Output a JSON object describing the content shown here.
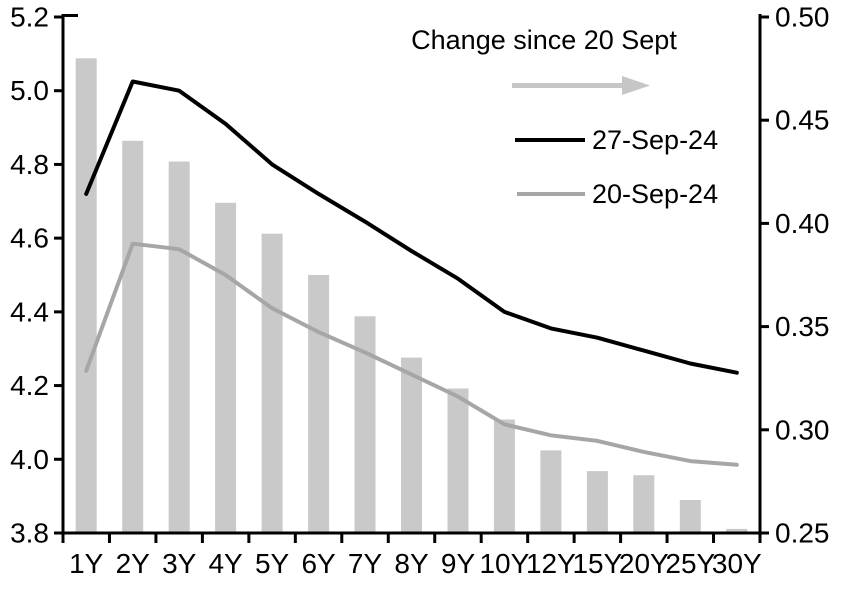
{
  "chart_data": {
    "type": "combo",
    "title": "",
    "categories": [
      "1Y",
      "2Y",
      "3Y",
      "4Y",
      "5Y",
      "6Y",
      "7Y",
      "8Y",
      "9Y",
      "10Y",
      "12Y",
      "15Y",
      "20Y",
      "25Y",
      "30Y"
    ],
    "series": [
      {
        "name": "Change since 20 Sept",
        "type": "bar",
        "axis": "right",
        "color": "#c9c9c9",
        "values": [
          0.48,
          0.44,
          0.43,
          0.41,
          0.395,
          0.375,
          0.355,
          0.335,
          0.32,
          0.305,
          0.29,
          0.28,
          0.278,
          0.266,
          0.252
        ]
      },
      {
        "name": "27-Sep-24",
        "type": "line",
        "axis": "left",
        "color": "#000000",
        "values": [
          4.72,
          5.025,
          5.0,
          4.91,
          4.8,
          4.72,
          4.645,
          4.565,
          4.49,
          4.4,
          4.355,
          4.33,
          4.295,
          4.26,
          4.235
        ]
      },
      {
        "name": "20-Sep-24",
        "type": "line",
        "axis": "left",
        "color": "#a6a6a6",
        "values": [
          4.24,
          4.585,
          4.57,
          4.5,
          4.41,
          4.345,
          4.29,
          4.23,
          4.17,
          4.095,
          4.065,
          4.05,
          4.02,
          3.995,
          3.985
        ]
      }
    ],
    "left_axis": {
      "min": 3.8,
      "max": 5.2,
      "tick_step": 0.2,
      "ticks": [
        "5.2",
        "5.0",
        "4.8",
        "4.6",
        "4.4",
        "4.2",
        "4.0",
        "3.8"
      ]
    },
    "right_axis": {
      "min": 0.25,
      "max": 0.5,
      "tick_step": 0.05,
      "ticks": [
        "0.50",
        "0.45",
        "0.40",
        "0.35",
        "0.30",
        "0.25"
      ]
    },
    "legend": {
      "change_label": "Change since 20 Sept",
      "series_27_label": "27-Sep-24",
      "series_20_label": "20-Sep-24",
      "arrow_color": "#c6c6c6",
      "line_27_color": "#000000",
      "line_20_color": "#a6a6a6"
    },
    "grid": false,
    "legend_position": "inside-top-right"
  }
}
